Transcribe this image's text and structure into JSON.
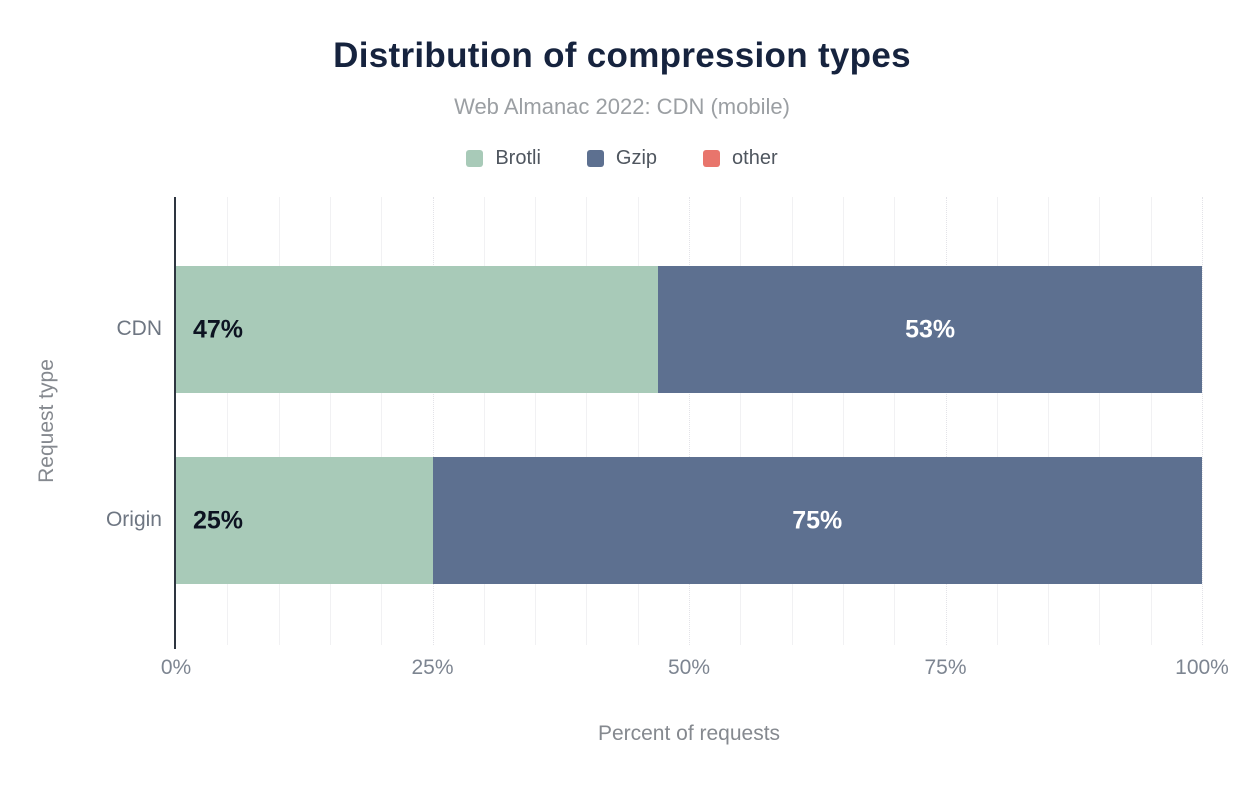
{
  "chart_data": {
    "type": "bar",
    "orientation": "horizontal",
    "stacked": true,
    "title": "Distribution of compression types",
    "subtitle": "Web Almanac 2022: CDN (mobile)",
    "xlabel": "Percent of requests",
    "ylabel": "Request type",
    "categories": [
      "CDN",
      "Origin"
    ],
    "series": [
      {
        "name": "Brotli",
        "color": "#a8cab8",
        "values": [
          47,
          25
        ]
      },
      {
        "name": "Gzip",
        "color": "#5d7090",
        "values": [
          53,
          75
        ]
      },
      {
        "name": "other",
        "color": "#e8756c",
        "values": [
          0,
          0
        ]
      }
    ],
    "bar_labels": [
      [
        "47%",
        "53%"
      ],
      [
        "25%",
        "75%"
      ]
    ],
    "xticks": [
      {
        "label": "0%",
        "pct": 0
      },
      {
        "label": "25%",
        "pct": 25
      },
      {
        "label": "50%",
        "pct": 50
      },
      {
        "label": "75%",
        "pct": 75
      },
      {
        "label": "100%",
        "pct": 100
      }
    ],
    "xlim": [
      0,
      100
    ],
    "grid": {
      "minor_step_pct": 5,
      "major_step_pct": 25,
      "minor_style": "solid",
      "major_style": "dotted"
    },
    "legend_position": "top"
  },
  "colors": {
    "title": "#16233e",
    "subtitle": "#9b9fa3",
    "axis_line": "#2e3540",
    "tick_label": "#7d8591",
    "axis_title": "#85898f",
    "category_label": "#6e7682",
    "legend_text": "#4f565f",
    "gridline_minor": "#f1f1f3",
    "gridline_major": "#e3e3e8",
    "value_label_on_light": "#0d1321",
    "value_label_on_dark": "#ffffff",
    "background": "#ffffff"
  }
}
